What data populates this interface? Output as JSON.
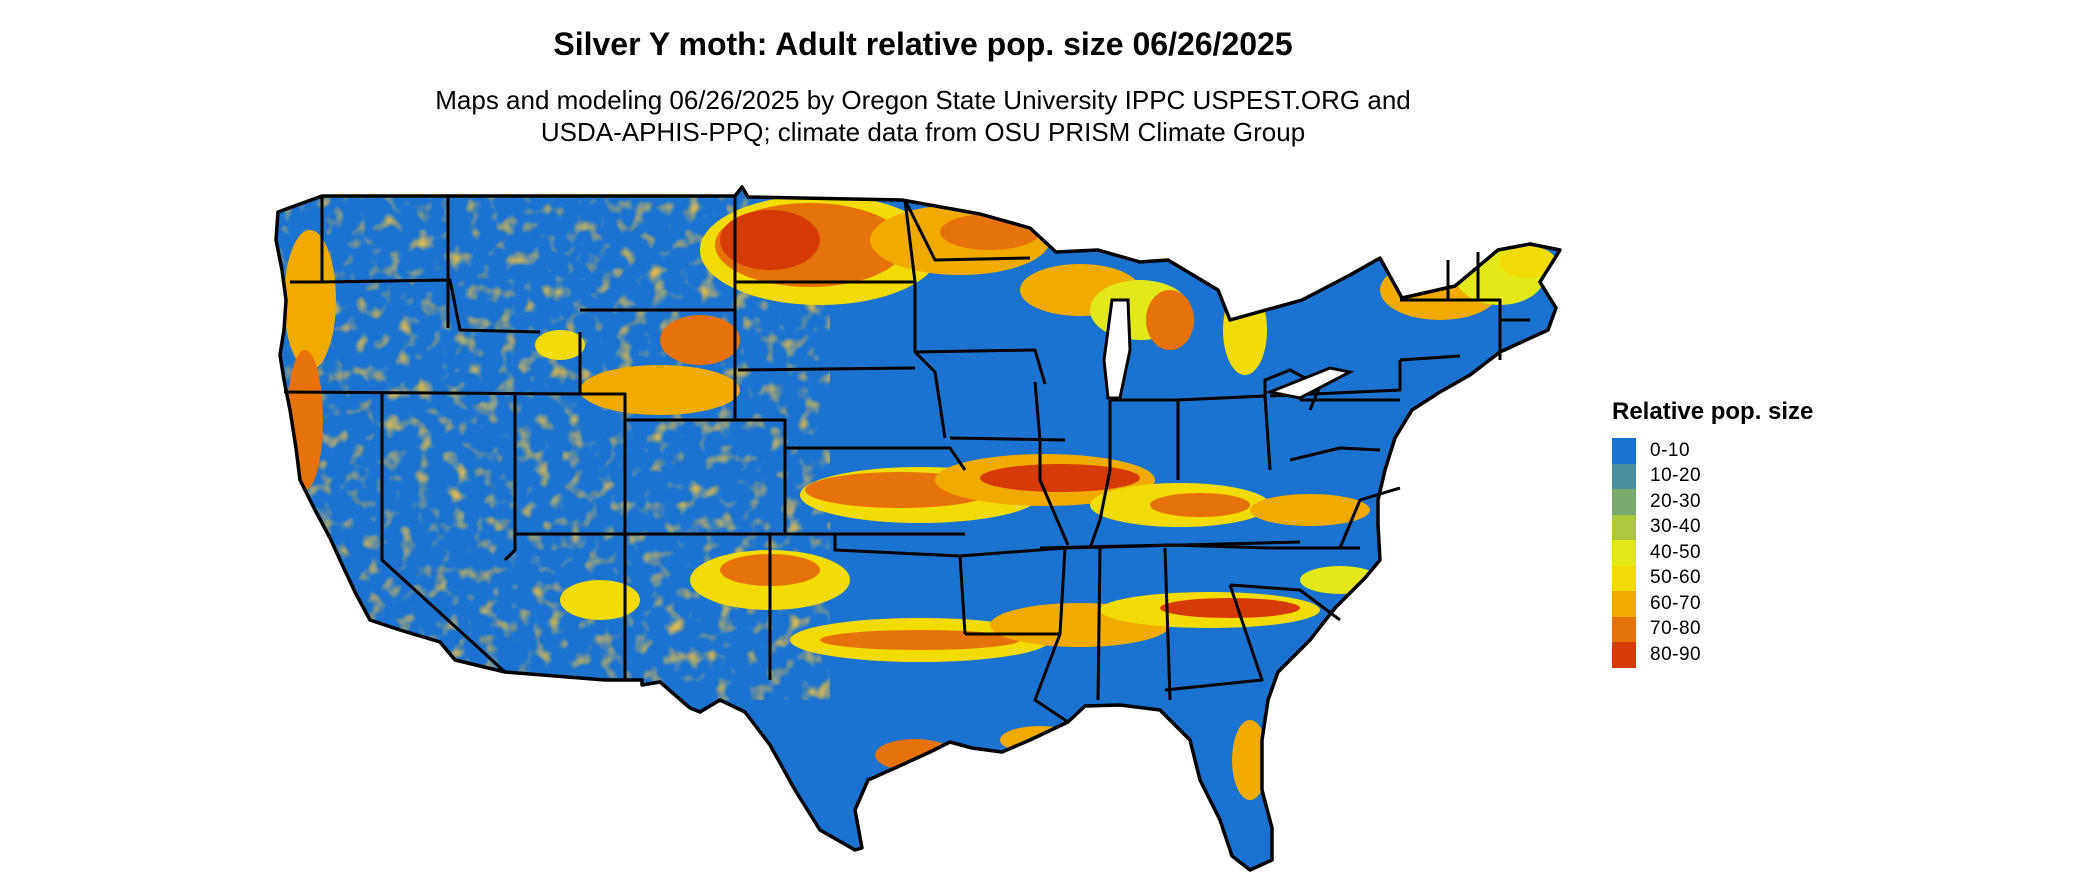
{
  "title": "Silver Y moth: Adult relative pop. size 06/26/2025",
  "subtitle_line1": "Maps and modeling 06/26/2025 by Oregon State University IPPC USPEST.ORG and",
  "subtitle_line2": "USDA-APHIS-PPQ; climate data from OSU PRISM Climate Group",
  "legend": {
    "title": "Relative pop. size",
    "items": [
      {
        "label": "0-10",
        "color": "#1b73cf"
      },
      {
        "label": "10-20",
        "color": "#4a8fa0"
      },
      {
        "label": "20-30",
        "color": "#7aaa6c"
      },
      {
        "label": "30-40",
        "color": "#acc93d"
      },
      {
        "label": "40-50",
        "color": "#e2e81a"
      },
      {
        "label": "50-60",
        "color": "#f3dc05"
      },
      {
        "label": "60-70",
        "color": "#f0aa00"
      },
      {
        "label": "70-80",
        "color": "#e6720a"
      },
      {
        "label": "80-90",
        "color": "#d63a08"
      }
    ]
  }
}
